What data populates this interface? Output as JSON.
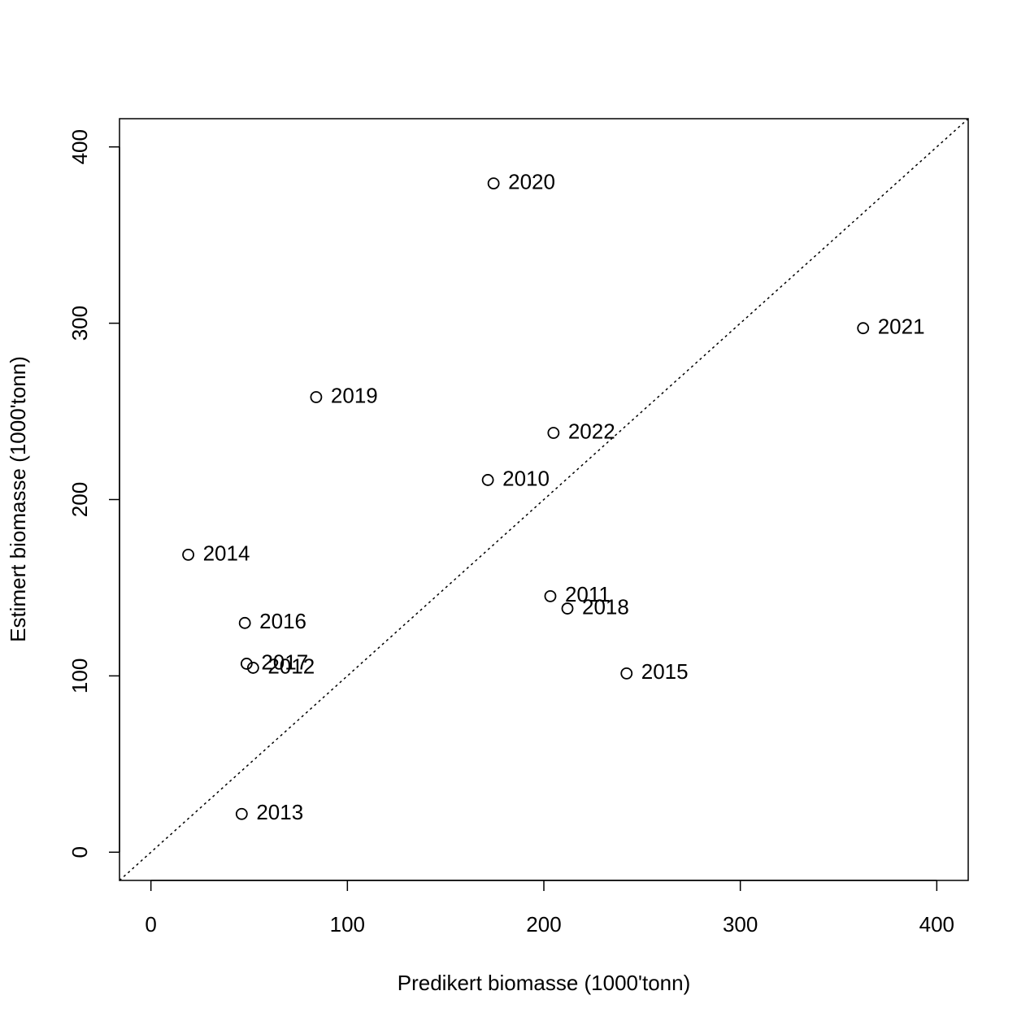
{
  "chart_data": {
    "type": "scatter",
    "xlabel": "Predikert biomasse (1000'tonn)",
    "ylabel": "Estimert biomasse (1000'tonn)",
    "labels": [
      "2020",
      "2021",
      "2019",
      "2022",
      "2010",
      "2014",
      "2011",
      "2018",
      "2016",
      "2015",
      "2017",
      "2012",
      "2013"
    ],
    "x": [
      174.4,
      362.5,
      84.1,
      204.9,
      171.5,
      19.0,
      203.3,
      212.0,
      47.8,
      242.1,
      48.7,
      52.0,
      46.2
    ],
    "values": [
      379.3,
      297.2,
      258.1,
      237.8,
      211.1,
      168.7,
      145.2,
      138.2,
      130.0,
      101.4,
      106.9,
      104.6,
      21.7
    ],
    "color": "#000000",
    "xlim": [
      -16,
      416
    ],
    "ylim": [
      -16,
      416
    ],
    "xticks": [
      0,
      100,
      200,
      300,
      400
    ],
    "yticks": [
      0,
      100,
      200,
      300,
      400
    ],
    "identity_line": true
  }
}
